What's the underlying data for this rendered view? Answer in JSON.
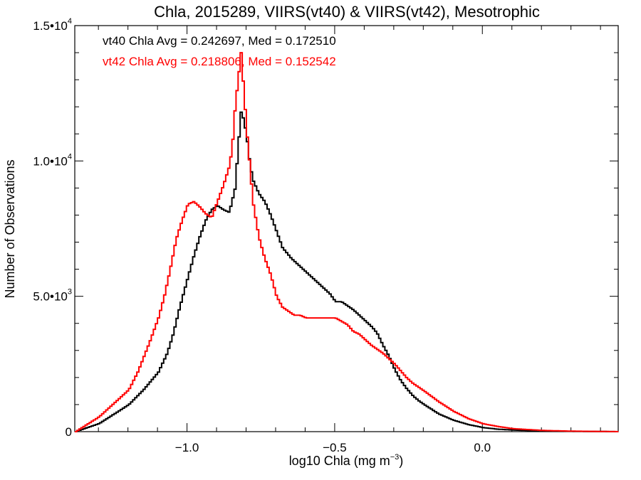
{
  "chart_data": {
    "type": "line",
    "title": "Chla, 2015289, VIIRS(vt40) & VIIRS(vt42), Mesotrophic",
    "xlabel_prefix": "log10 Chla (mg m",
    "xlabel_sup": "−3",
    "xlabel_suffix": ")",
    "ylabel": "Number of Observations",
    "xlim": [
      -1.38,
      0.46
    ],
    "ylim": [
      0,
      15000
    ],
    "grid": false,
    "xticks": [
      {
        "value": -1.0,
        "label": "−1.0"
      },
      {
        "value": -0.5,
        "label": "−0.5"
      },
      {
        "value": 0.0,
        "label": "0.0"
      }
    ],
    "yticks": [
      {
        "value": 0,
        "label": "0",
        "exp": ""
      },
      {
        "value": 5000,
        "label": "5.0•10",
        "exp": "3"
      },
      {
        "value": 10000,
        "label": "1.0•10",
        "exp": "4"
      },
      {
        "value": 15000,
        "label": "1.5•10",
        "exp": "4"
      }
    ],
    "annotations": [
      {
        "text": "vt40 Chla Avg = 0.242697, Med = 0.172510",
        "color": "#000000"
      },
      {
        "text": "vt42 Chla Avg = 0.218806, Med = 0.152542",
        "color": "#ff0000"
      }
    ],
    "series": [
      {
        "color": "#000000",
        "x": [
          -1.38,
          -1.3,
          -1.25,
          -1.2,
          -1.15,
          -1.1,
          -1.07,
          -1.05,
          -1.03,
          -1.0,
          -0.98,
          -0.96,
          -0.94,
          -0.92,
          -0.9,
          -0.88,
          -0.86,
          -0.84,
          -0.83,
          -0.82,
          -0.81,
          -0.8,
          -0.79,
          -0.78,
          -0.76,
          -0.74,
          -0.72,
          -0.7,
          -0.68,
          -0.65,
          -0.62,
          -0.6,
          -0.58,
          -0.55,
          -0.52,
          -0.5,
          -0.48,
          -0.46,
          -0.44,
          -0.42,
          -0.4,
          -0.38,
          -0.36,
          -0.34,
          -0.32,
          -0.3,
          -0.28,
          -0.26,
          -0.24,
          -0.22,
          -0.2,
          -0.15,
          -0.1,
          -0.05,
          0.0,
          0.05,
          0.1,
          0.15,
          0.2,
          0.3,
          0.4,
          0.46
        ],
        "values": [
          0,
          300,
          650,
          1000,
          1550,
          2200,
          2900,
          3600,
          4500,
          5700,
          6500,
          7200,
          7800,
          8200,
          8350,
          8200,
          8100,
          9000,
          10500,
          11800,
          11500,
          10800,
          9900,
          9300,
          8800,
          8500,
          8000,
          7400,
          6800,
          6400,
          6100,
          5900,
          5700,
          5400,
          5100,
          4800,
          4800,
          4650,
          4500,
          4300,
          4100,
          3900,
          3650,
          3200,
          2800,
          2300,
          1900,
          1600,
          1350,
          1150,
          1000,
          650,
          420,
          260,
          150,
          90,
          60,
          40,
          25,
          12,
          5,
          0
        ]
      },
      {
        "color": "#ff0000",
        "x": [
          -1.38,
          -1.3,
          -1.25,
          -1.2,
          -1.17,
          -1.15,
          -1.13,
          -1.1,
          -1.08,
          -1.06,
          -1.04,
          -1.02,
          -1.0,
          -0.98,
          -0.96,
          -0.94,
          -0.92,
          -0.9,
          -0.88,
          -0.86,
          -0.85,
          -0.84,
          -0.83,
          -0.82,
          -0.81,
          -0.8,
          -0.79,
          -0.78,
          -0.76,
          -0.74,
          -0.72,
          -0.7,
          -0.68,
          -0.66,
          -0.64,
          -0.62,
          -0.6,
          -0.55,
          -0.5,
          -0.46,
          -0.44,
          -0.42,
          -0.4,
          -0.38,
          -0.36,
          -0.34,
          -0.32,
          -0.3,
          -0.28,
          -0.26,
          -0.24,
          -0.22,
          -0.2,
          -0.15,
          -0.1,
          -0.05,
          0.0,
          0.05,
          0.1,
          0.2,
          0.3,
          0.46
        ],
        "values": [
          0,
          550,
          1050,
          1550,
          2200,
          2750,
          3300,
          4200,
          5000,
          6000,
          7100,
          7800,
          8400,
          8500,
          8300,
          8050,
          7900,
          8500,
          9100,
          9800,
          10500,
          12000,
          13000,
          14000,
          12500,
          11000,
          9800,
          8500,
          7200,
          6400,
          5800,
          5000,
          4600,
          4450,
          4300,
          4300,
          4200,
          4200,
          4200,
          3950,
          3700,
          3600,
          3400,
          3200,
          3050,
          2900,
          2700,
          2500,
          2250,
          2000,
          1800,
          1650,
          1500,
          1100,
          750,
          480,
          290,
          190,
          110,
          45,
          18,
          0
        ]
      }
    ]
  }
}
